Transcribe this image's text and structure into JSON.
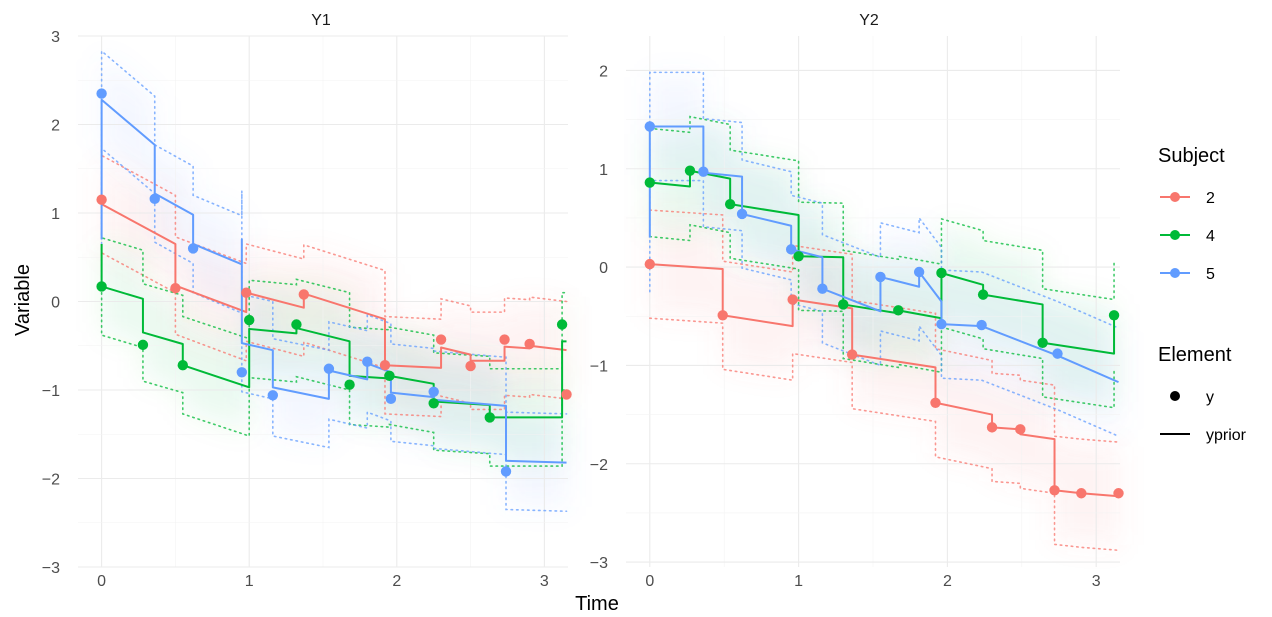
{
  "chart_data": {
    "type": "line",
    "xlabel": "Time",
    "ylabel": "Variable",
    "colors": {
      "2": "#F8766D",
      "4": "#00BA38",
      "5": "#619CFF"
    },
    "legend": {
      "subject_title": "Subject",
      "subjects": [
        "2",
        "4",
        "5"
      ],
      "element_title": "Element",
      "elements": [
        {
          "shape": "point",
          "label": "y"
        },
        {
          "shape": "line",
          "label": "yprior"
        }
      ]
    },
    "panels": [
      {
        "title": "Y1",
        "xlim": [
          -0.16,
          3.16
        ],
        "ylim": [
          -3,
          3
        ],
        "xticks": [
          0,
          1,
          2,
          3
        ],
        "xtick_labels": [
          "0",
          "1",
          "2",
          "3"
        ],
        "yticks": [
          -3,
          -2,
          -1,
          0,
          1,
          2,
          3
        ],
        "ytick_labels": [
          "−3",
          "−2",
          "−1",
          "0",
          "1",
          "2",
          "3"
        ],
        "series": [
          {
            "subject": "2",
            "y": [
              [
                0.0,
                1.15
              ],
              [
                0.5,
                0.15
              ],
              [
                0.98,
                0.1
              ],
              [
                1.37,
                0.08
              ],
              [
                1.92,
                -0.72
              ],
              [
                2.3,
                -0.43
              ],
              [
                2.5,
                -0.73
              ],
              [
                2.73,
                -0.43
              ],
              [
                2.9,
                -0.48
              ],
              [
                3.15,
                -1.05
              ]
            ],
            "yprior": [
              [
                0.0,
                1.15
              ],
              [
                0.0,
                1.1
              ],
              [
                0.5,
                0.65
              ],
              [
                0.5,
                0.18
              ],
              [
                0.98,
                -0.12
              ],
              [
                0.98,
                0.1
              ],
              [
                1.37,
                -0.07
              ],
              [
                1.37,
                0.09
              ],
              [
                1.92,
                -0.2
              ],
              [
                1.92,
                -0.72
              ],
              [
                2.3,
                -0.75
              ],
              [
                2.3,
                -0.52
              ],
              [
                2.5,
                -0.6
              ],
              [
                2.5,
                -0.67
              ],
              [
                2.73,
                -0.67
              ],
              [
                2.73,
                -0.51
              ],
              [
                2.9,
                -0.53
              ],
              [
                2.9,
                -0.5
              ],
              [
                3.15,
                -0.55
              ]
            ]
          },
          {
            "subject": "4",
            "y": [
              [
                0.0,
                0.17
              ],
              [
                0.28,
                -0.49
              ],
              [
                0.55,
                -0.72
              ],
              [
                1.0,
                -0.21
              ],
              [
                1.32,
                -0.26
              ],
              [
                1.68,
                -0.94
              ],
              [
                1.95,
                -0.84
              ],
              [
                2.25,
                -1.15
              ],
              [
                2.63,
                -1.31
              ],
              [
                3.12,
                -0.26
              ]
            ],
            "yprior": [
              [
                0.0,
                0.65
              ],
              [
                0.0,
                0.17
              ],
              [
                0.28,
                0.03
              ],
              [
                0.28,
                -0.35
              ],
              [
                0.55,
                -0.48
              ],
              [
                0.55,
                -0.72
              ],
              [
                1.0,
                -0.97
              ],
              [
                1.0,
                -0.31
              ],
              [
                1.32,
                -0.36
              ],
              [
                1.32,
                -0.3
              ],
              [
                1.68,
                -0.45
              ],
              [
                1.68,
                -0.84
              ],
              [
                1.95,
                -0.87
              ],
              [
                1.95,
                -0.84
              ],
              [
                2.25,
                -0.93
              ],
              [
                2.25,
                -1.13
              ],
              [
                2.63,
                -1.17
              ],
              [
                2.63,
                -1.31
              ],
              [
                3.12,
                -1.31
              ],
              [
                3.12,
                -0.45
              ],
              [
                3.15,
                -0.45
              ]
            ]
          },
          {
            "subject": "5",
            "y": [
              [
                0.0,
                2.35
              ],
              [
                0.36,
                1.16
              ],
              [
                0.62,
                0.6
              ],
              [
                0.95,
                -0.8
              ],
              [
                1.16,
                -1.06
              ],
              [
                1.54,
                -0.76
              ],
              [
                1.8,
                -0.68
              ],
              [
                1.96,
                -1.1
              ],
              [
                2.25,
                -1.02
              ],
              [
                2.74,
                -1.92
              ]
            ],
            "yprior": [
              [
                0.0,
                0.7
              ],
              [
                0.0,
                2.28
              ],
              [
                0.36,
                1.77
              ],
              [
                0.36,
                1.22
              ],
              [
                0.62,
                0.98
              ],
              [
                0.62,
                0.65
              ],
              [
                0.95,
                0.42
              ],
              [
                0.95,
                0.7
              ],
              [
                0.95,
                -0.47
              ],
              [
                1.16,
                -0.55
              ],
              [
                1.16,
                -0.97
              ],
              [
                1.54,
                -1.1
              ],
              [
                1.54,
                -0.78
              ],
              [
                1.8,
                -0.88
              ],
              [
                1.8,
                -0.7
              ],
              [
                1.96,
                -0.8
              ],
              [
                1.96,
                -1.03
              ],
              [
                2.25,
                -1.08
              ],
              [
                2.25,
                -1.11
              ],
              [
                2.74,
                -1.18
              ],
              [
                2.74,
                -1.8
              ],
              [
                3.15,
                -1.82
              ]
            ]
          }
        ]
      },
      {
        "title": "Y2",
        "xlim": [
          -0.16,
          3.16
        ],
        "ylim": [
          -3.05,
          2.35
        ],
        "xticks": [
          0,
          1,
          2,
          3
        ],
        "xtick_labels": [
          "0",
          "1",
          "2",
          "3"
        ],
        "yticks": [
          -3,
          -2,
          -1,
          0,
          1,
          2
        ],
        "ytick_labels": [
          "−3",
          "−2",
          "−1",
          "0",
          "1",
          "2"
        ],
        "series": [
          {
            "subject": "2",
            "y": [
              [
                0.0,
                0.03
              ],
              [
                0.49,
                -0.49
              ],
              [
                0.96,
                -0.33
              ],
              [
                1.36,
                -0.89
              ],
              [
                1.92,
                -1.38
              ],
              [
                2.3,
                -1.63
              ],
              [
                2.49,
                -1.65
              ],
              [
                2.72,
                -2.27
              ],
              [
                2.9,
                -2.3
              ],
              [
                3.15,
                -2.3
              ]
            ],
            "yprior": [
              [
                0.0,
                0.03
              ],
              [
                0.49,
                -0.02
              ],
              [
                0.49,
                -0.49
              ],
              [
                0.96,
                -0.6
              ],
              [
                0.96,
                -0.33
              ],
              [
                1.36,
                -0.42
              ],
              [
                1.36,
                -0.89
              ],
              [
                1.92,
                -1.02
              ],
              [
                1.92,
                -1.38
              ],
              [
                2.3,
                -1.5
              ],
              [
                2.3,
                -1.63
              ],
              [
                2.49,
                -1.65
              ],
              [
                2.49,
                -1.7
              ],
              [
                2.72,
                -1.75
              ],
              [
                2.72,
                -2.27
              ],
              [
                2.9,
                -2.3
              ],
              [
                3.15,
                -2.33
              ]
            ]
          },
          {
            "subject": "4",
            "y": [
              [
                0.0,
                0.86
              ],
              [
                0.27,
                0.98
              ],
              [
                0.54,
                0.64
              ],
              [
                1.0,
                0.11
              ],
              [
                1.3,
                -0.38
              ],
              [
                1.67,
                -0.44
              ],
              [
                1.96,
                -0.06
              ],
              [
                2.24,
                -0.28
              ],
              [
                2.64,
                -0.77
              ],
              [
                3.12,
                -0.49
              ]
            ],
            "yprior": [
              [
                0.0,
                0.86
              ],
              [
                0.27,
                0.82
              ],
              [
                0.27,
                0.98
              ],
              [
                0.54,
                0.9
              ],
              [
                0.54,
                0.64
              ],
              [
                1.0,
                0.53
              ],
              [
                1.0,
                0.11
              ],
              [
                1.3,
                0.1
              ],
              [
                1.3,
                -0.38
              ],
              [
                1.67,
                -0.47
              ],
              [
                1.67,
                -0.44
              ],
              [
                1.96,
                -0.52
              ],
              [
                1.96,
                -0.06
              ],
              [
                2.24,
                -0.18
              ],
              [
                2.24,
                -0.28
              ],
              [
                2.64,
                -0.38
              ],
              [
                2.64,
                -0.77
              ],
              [
                3.12,
                -0.88
              ],
              [
                3.12,
                -0.49
              ]
            ]
          },
          {
            "subject": "5",
            "y": [
              [
                0.0,
                1.43
              ],
              [
                0.36,
                0.97
              ],
              [
                0.62,
                0.54
              ],
              [
                0.95,
                0.18
              ],
              [
                1.16,
                -0.22
              ],
              [
                1.55,
                -0.1
              ],
              [
                1.81,
                -0.05
              ],
              [
                1.96,
                -0.58
              ],
              [
                2.23,
                -0.59
              ],
              [
                2.74,
                -0.88
              ]
            ],
            "yprior": [
              [
                0.0,
                0.3
              ],
              [
                0.0,
                1.43
              ],
              [
                0.36,
                1.43
              ],
              [
                0.36,
                0.96
              ],
              [
                0.62,
                0.92
              ],
              [
                0.62,
                0.54
              ],
              [
                0.95,
                0.42
              ],
              [
                0.95,
                0.18
              ],
              [
                1.16,
                0.1
              ],
              [
                1.16,
                -0.22
              ],
              [
                1.55,
                -0.45
              ],
              [
                1.55,
                -0.1
              ],
              [
                1.81,
                -0.2
              ],
              [
                1.81,
                -0.05
              ],
              [
                1.96,
                -0.35
              ],
              [
                1.96,
                -0.58
              ],
              [
                2.23,
                -0.6
              ],
              [
                2.74,
                -0.9
              ],
              [
                3.15,
                -1.17
              ]
            ]
          }
        ]
      }
    ]
  }
}
